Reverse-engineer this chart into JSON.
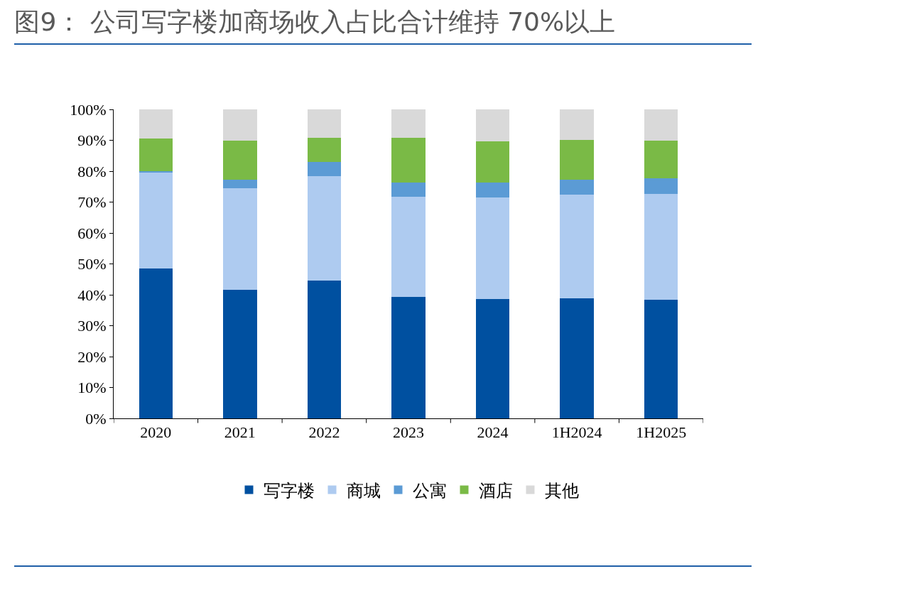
{
  "chart_data": {
    "type": "bar",
    "title": "图9： 公司写字楼加商场收入占比合计维持 70%以上",
    "stacked": true,
    "categories": [
      "2020",
      "2021",
      "2022",
      "2023",
      "2024",
      "1H2024",
      "1H2025"
    ],
    "series": [
      {
        "name": "写字楼",
        "color": "#0050a0",
        "values": [
          48.5,
          41.6,
          44.6,
          39.3,
          38.6,
          38.9,
          38.4
        ]
      },
      {
        "name": "商城",
        "color": "#aecbf0",
        "values": [
          31.0,
          32.9,
          33.8,
          32.4,
          32.9,
          33.5,
          34.2
        ]
      },
      {
        "name": "公寓",
        "color": "#5b9bd5",
        "values": [
          0.5,
          2.7,
          4.6,
          4.6,
          4.8,
          4.8,
          5.1
        ]
      },
      {
        "name": "酒店",
        "color": "#7aba46",
        "values": [
          10.6,
          12.7,
          7.8,
          14.5,
          13.4,
          12.9,
          12.2
        ]
      },
      {
        "name": "其他",
        "color": "#d9d9d9",
        "values": [
          9.4,
          10.1,
          9.2,
          9.2,
          10.3,
          9.9,
          10.1
        ]
      }
    ],
    "ylim": [
      0,
      100
    ],
    "yticks": [
      {
        "value": 0,
        "label": "0%"
      },
      {
        "value": 10,
        "label": "10%"
      },
      {
        "value": 20,
        "label": "20%"
      },
      {
        "value": 30,
        "label": "30%"
      },
      {
        "value": 40,
        "label": "40%"
      },
      {
        "value": 50,
        "label": "50%"
      },
      {
        "value": 60,
        "label": "60%"
      },
      {
        "value": 70,
        "label": "70%"
      },
      {
        "value": 80,
        "label": "80%"
      },
      {
        "value": 90,
        "label": "90%"
      },
      {
        "value": 100,
        "label": "100%"
      }
    ],
    "legend": "bottom"
  }
}
